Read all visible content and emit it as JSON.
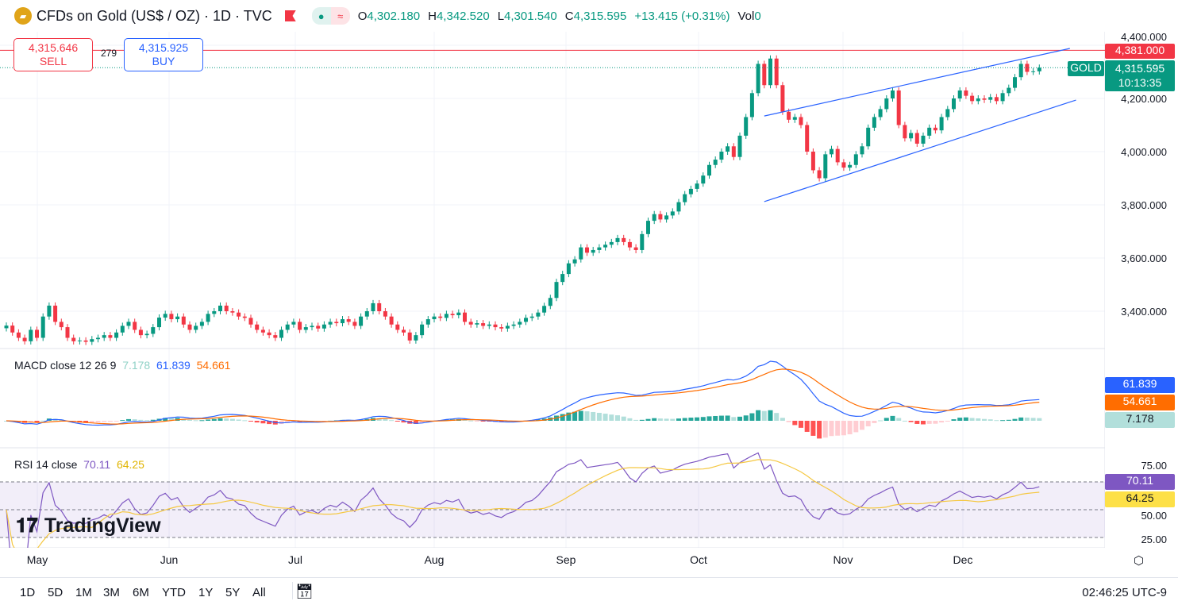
{
  "header": {
    "symbol_title": "CFDs on Gold (US$ / OZ) · 1D · TVC",
    "ohlc": {
      "o_label": "O",
      "o": "4,302.180",
      "h_label": "H",
      "h": "4,342.520",
      "l_label": "L",
      "l": "4,301.540",
      "c_label": "C",
      "c": "4,315.595",
      "change": "+13.415 (+0.31%)",
      "vol_label": "Vol",
      "vol": "0"
    }
  },
  "trade": {
    "sell_price": "4,315.646",
    "sell_label": "SELL",
    "spread": "279",
    "buy_price": "4,315.925",
    "buy_label": "BUY"
  },
  "price_axis": {
    "ticks": [
      "4,400.000",
      "4,200.000",
      "4,000.000",
      "3,800.000",
      "3,600.000",
      "3,400.000"
    ],
    "high_line_label": "4,381.000",
    "symbol_tag": "GOLD",
    "last_price": "4,315.595",
    "countdown": "10:13:35"
  },
  "macd": {
    "title": "MACD close 12 26 9",
    "hist": "7.178",
    "macd": "61.839",
    "signal": "54.661"
  },
  "rsi": {
    "title": "RSI 14 close",
    "rsi": "70.11",
    "ma": "64.25",
    "ticks": [
      "75.00",
      "50.00",
      "25.00"
    ]
  },
  "time_axis": {
    "months": [
      "May",
      "Jun",
      "Jul",
      "Aug",
      "Sep",
      "Oct",
      "Nov",
      "Dec"
    ]
  },
  "ranges": [
    "1D",
    "5D",
    "1M",
    "3M",
    "6M",
    "YTD",
    "1Y",
    "5Y",
    "All"
  ],
  "clock": "02:46:25 UTC-9",
  "logo": "TradingView",
  "colors": {
    "up": "#089981",
    "down": "#f23645",
    "macd": "#2962ff",
    "signal": "#ff6d00",
    "rsi": "#7e57c2",
    "rsi_ma": "#f5c842",
    "trendline": "#2962ff"
  },
  "chart_data": {
    "type": "candlestick",
    "interval": "1D",
    "y_range": [
      3280,
      4400
    ],
    "closes": [
      3346,
      3320,
      3300,
      3287,
      3330,
      3300,
      3380,
      3421,
      3360,
      3340,
      3300,
      3287,
      3290,
      3285,
      3295,
      3300,
      3310,
      3300,
      3320,
      3345,
      3360,
      3330,
      3310,
      3315,
      3340,
      3376,
      3390,
      3370,
      3380,
      3350,
      3330,
      3345,
      3360,
      3390,
      3400,
      3421,
      3400,
      3395,
      3380,
      3375,
      3350,
      3330,
      3320,
      3310,
      3300,
      3330,
      3350,
      3360,
      3330,
      3340,
      3345,
      3335,
      3350,
      3360,
      3355,
      3370,
      3360,
      3345,
      3380,
      3400,
      3430,
      3400,
      3380,
      3350,
      3330,
      3320,
      3290,
      3310,
      3350,
      3370,
      3380,
      3375,
      3390,
      3385,
      3395,
      3360,
      3350,
      3355,
      3345,
      3350,
      3340,
      3335,
      3345,
      3350,
      3360,
      3375,
      3380,
      3395,
      3420,
      3450,
      3510,
      3540,
      3580,
      3595,
      3640,
      3620,
      3630,
      3640,
      3650,
      3660,
      3675,
      3660,
      3640,
      3630,
      3690,
      3740,
      3765,
      3745,
      3760,
      3775,
      3810,
      3840,
      3860,
      3880,
      3910,
      3950,
      3970,
      4000,
      4020,
      3980,
      4060,
      4130,
      4220,
      4330,
      4250,
      4350,
      4250,
      4150,
      4120,
      4130,
      4100,
      4000,
      3930,
      3900,
      3990,
      4010,
      3960,
      3940,
      3950,
      3990,
      4020,
      4090,
      4130,
      4160,
      4200,
      4230,
      4100,
      4050,
      4070,
      4030,
      4060,
      4090,
      4080,
      4130,
      4160,
      4200,
      4230,
      4210,
      4190,
      4200,
      4195,
      4205,
      4190,
      4220,
      4240,
      4280,
      4330,
      4300,
      4302,
      4315.595
    ],
    "horizontal_line": 4381.0,
    "trendlines": [
      {
        "from": [
          124,
          4134
        ],
        "to": [
          174,
          4388
        ]
      },
      {
        "from": [
          124,
          3812
        ],
        "to": [
          175,
          4194
        ]
      }
    ]
  }
}
